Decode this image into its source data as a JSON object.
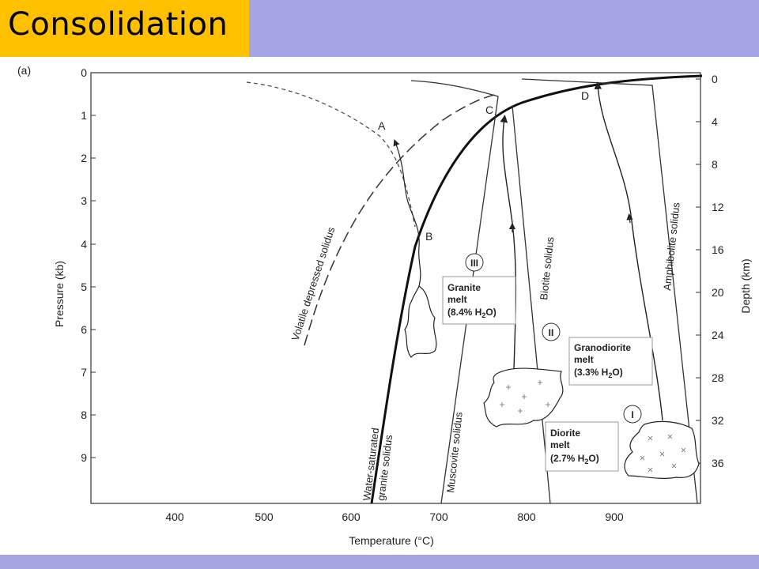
{
  "slide": {
    "title": "Consolidation"
  },
  "figure": {
    "panel_label": "(a)",
    "x_axis": {
      "title": "Temperature (°C)",
      "ticks": [
        "400",
        "500",
        "600",
        "700",
        "800",
        "900"
      ]
    },
    "left_axis": {
      "title": "Pressure (kb)",
      "ticks": [
        "0",
        "1",
        "2",
        "3",
        "4",
        "5",
        "6",
        "7",
        "8",
        "9"
      ]
    },
    "right_axis": {
      "title": "Depth (km)",
      "ticks": [
        "0",
        "4",
        "8",
        "12",
        "16",
        "20",
        "24",
        "28",
        "32",
        "36"
      ]
    },
    "curve_labels": {
      "volatile": "Volatile depressed solidus",
      "water_sat_1": "Water-saturated",
      "water_sat_2": "granite solidus",
      "muscovite": "Muscovite solidus",
      "biotite": "Biotite solidus",
      "amphibolite": "Amphibolite solidus"
    },
    "points": {
      "a": "A",
      "b": "B",
      "c": "C",
      "d": "D"
    },
    "melts": {
      "granite": {
        "numeral": "III",
        "line1": "Granite",
        "line2": "melt",
        "line3": "(8.4% H",
        "sub": "2",
        "line3_end": "O)"
      },
      "granodiorite": {
        "numeral": "II",
        "line1": "Granodiorite",
        "line2": "melt",
        "line3": "(3.3% H",
        "sub": "2",
        "line3_end": "O)"
      },
      "diorite": {
        "numeral": "I",
        "line1": "Diorite",
        "line2": "melt",
        "line3": "(2.7% H",
        "sub": "2",
        "line3_end": "O)"
      }
    }
  }
}
